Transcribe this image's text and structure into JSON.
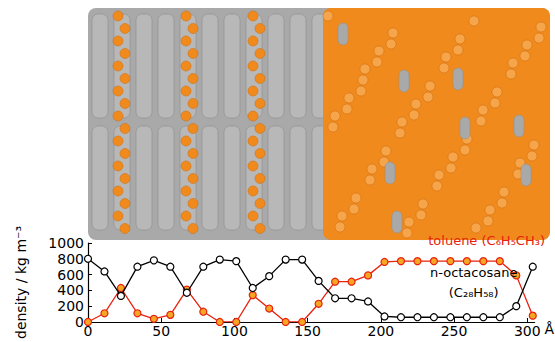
{
  "chart_data": {
    "type": "line",
    "xlabel": "Å",
    "ylabel": "density / kg m⁻³",
    "x": [
      0,
      11.25,
      22.5,
      33.75,
      45,
      56.25,
      67.5,
      78.75,
      90,
      101.25,
      112.5,
      123.75,
      135,
      146.25,
      157.5,
      168.75,
      180,
      191.25,
      202.5,
      213.75,
      225,
      236.25,
      247.5,
      258.75,
      270,
      281.25,
      292.5,
      303.75
    ],
    "series": [
      {
        "name": "toluene (C₆H₅CH₃)",
        "color": "#e8200c",
        "marker": "circle",
        "values": [
          0,
          110,
          430,
          110,
          40,
          90,
          410,
          130,
          0,
          0,
          340,
          170,
          0,
          0,
          230,
          510,
          510,
          590,
          760,
          770,
          770,
          770,
          770,
          770,
          770,
          770,
          590,
          80
        ]
      },
      {
        "name": "n-octacosane (C₂₈H₅₈)",
        "color": "#000000",
        "marker": "circle",
        "values": [
          800,
          640,
          330,
          700,
          780,
          700,
          370,
          700,
          790,
          770,
          430,
          580,
          790,
          790,
          520,
          300,
          300,
          260,
          70,
          60,
          60,
          60,
          60,
          60,
          60,
          60,
          200,
          700
        ]
      }
    ],
    "xlim": [
      0,
      305
    ],
    "xticks": [
      0,
      50,
      100,
      150,
      200,
      250,
      300
    ],
    "ylim": [
      0,
      1000
    ],
    "yticks": [
      0,
      200,
      400,
      600,
      800,
      1000
    ],
    "grid": false
  }
}
